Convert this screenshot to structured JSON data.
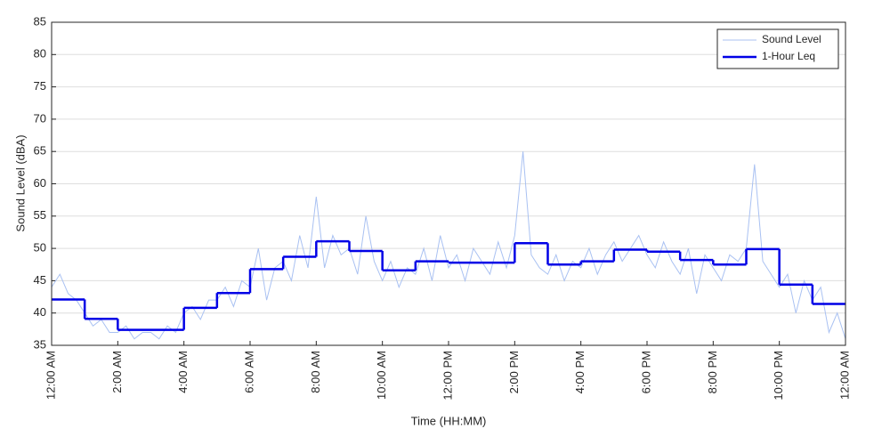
{
  "chart_data": {
    "type": "line",
    "xlabel": "Time (HH:MM)",
    "ylabel": "Sound Level (dBA)",
    "xlim": [
      0,
      24
    ],
    "ylim": [
      35,
      85
    ],
    "xticks": [
      {
        "value": 0,
        "label": "12:00 AM"
      },
      {
        "value": 2,
        "label": "2:00 AM"
      },
      {
        "value": 4,
        "label": "4:00 AM"
      },
      {
        "value": 6,
        "label": "6:00 AM"
      },
      {
        "value": 8,
        "label": "8:00 AM"
      },
      {
        "value": 10,
        "label": "10:00 AM"
      },
      {
        "value": 12,
        "label": "12:00 PM"
      },
      {
        "value": 14,
        "label": "2:00 PM"
      },
      {
        "value": 16,
        "label": "4:00 PM"
      },
      {
        "value": 18,
        "label": "6:00 PM"
      },
      {
        "value": 20,
        "label": "8:00 PM"
      },
      {
        "value": 22,
        "label": "10:00 PM"
      },
      {
        "value": 24,
        "label": "12:00 AM"
      }
    ],
    "yticks": [
      35,
      40,
      45,
      50,
      55,
      60,
      65,
      70,
      75,
      80,
      85
    ],
    "grid": true,
    "legend": "upper right",
    "series": [
      {
        "name": "Sound Level",
        "color": "#a9c1f2",
        "drawstyle": "line",
        "x": [
          0,
          0.25,
          0.5,
          0.75,
          1,
          1.25,
          1.5,
          1.75,
          2,
          2.25,
          2.5,
          2.75,
          3,
          3.25,
          3.5,
          3.75,
          4,
          4.25,
          4.5,
          4.75,
          5,
          5.25,
          5.5,
          5.75,
          6,
          6.25,
          6.5,
          6.75,
          7,
          7.25,
          7.5,
          7.75,
          8,
          8.25,
          8.5,
          8.75,
          9,
          9.25,
          9.5,
          9.75,
          10,
          10.25,
          10.5,
          10.75,
          11,
          11.25,
          11.5,
          11.75,
          12,
          12.25,
          12.5,
          12.75,
          13,
          13.25,
          13.5,
          13.75,
          14,
          14.25,
          14.5,
          14.75,
          15,
          15.25,
          15.5,
          15.75,
          16,
          16.25,
          16.5,
          16.75,
          17,
          17.25,
          17.5,
          17.75,
          18,
          18.25,
          18.5,
          18.75,
          19,
          19.25,
          19.5,
          19.75,
          20,
          20.25,
          20.5,
          20.75,
          21,
          21.25,
          21.5,
          21.75,
          22,
          22.25,
          22.5,
          22.75,
          23,
          23.25,
          23.5,
          23.75,
          24
        ],
        "values": [
          44,
          46,
          43,
          42,
          40,
          38,
          39,
          37,
          37,
          38,
          36,
          37,
          37,
          36,
          38,
          37,
          40,
          41,
          39,
          42,
          42,
          44,
          41,
          45,
          44,
          50,
          42,
          47,
          48,
          45,
          52,
          47,
          58,
          47,
          52,
          49,
          50,
          46,
          55,
          48,
          45,
          48,
          44,
          47,
          46,
          50,
          45,
          52,
          47,
          49,
          45,
          50,
          48,
          46,
          51,
          47,
          52,
          65,
          49,
          47,
          46,
          49,
          45,
          48,
          47,
          50,
          46,
          49,
          51,
          48,
          50,
          52,
          49,
          47,
          51,
          48,
          46,
          50,
          43,
          49,
          47,
          45,
          49,
          48,
          50,
          63,
          48,
          46,
          44,
          46,
          40,
          45,
          42,
          44,
          37,
          40,
          36
        ]
      },
      {
        "name": "1-Hour Leq",
        "color": "#0000e6",
        "drawstyle": "steps-post",
        "x": [
          0,
          1,
          2,
          3,
          4,
          5,
          6,
          7,
          8,
          9,
          10,
          11,
          12,
          13,
          14,
          15,
          16,
          17,
          18,
          19,
          20,
          21,
          22,
          23
        ],
        "values": [
          42.1,
          39.1,
          37.4,
          37.4,
          40.8,
          43.1,
          46.8,
          48.7,
          51.1,
          49.6,
          46.6,
          48.0,
          47.8,
          47.8,
          50.8,
          47.5,
          48.0,
          49.8,
          49.5,
          48.2,
          47.5,
          49.9,
          44.4,
          41.4
        ]
      }
    ]
  }
}
